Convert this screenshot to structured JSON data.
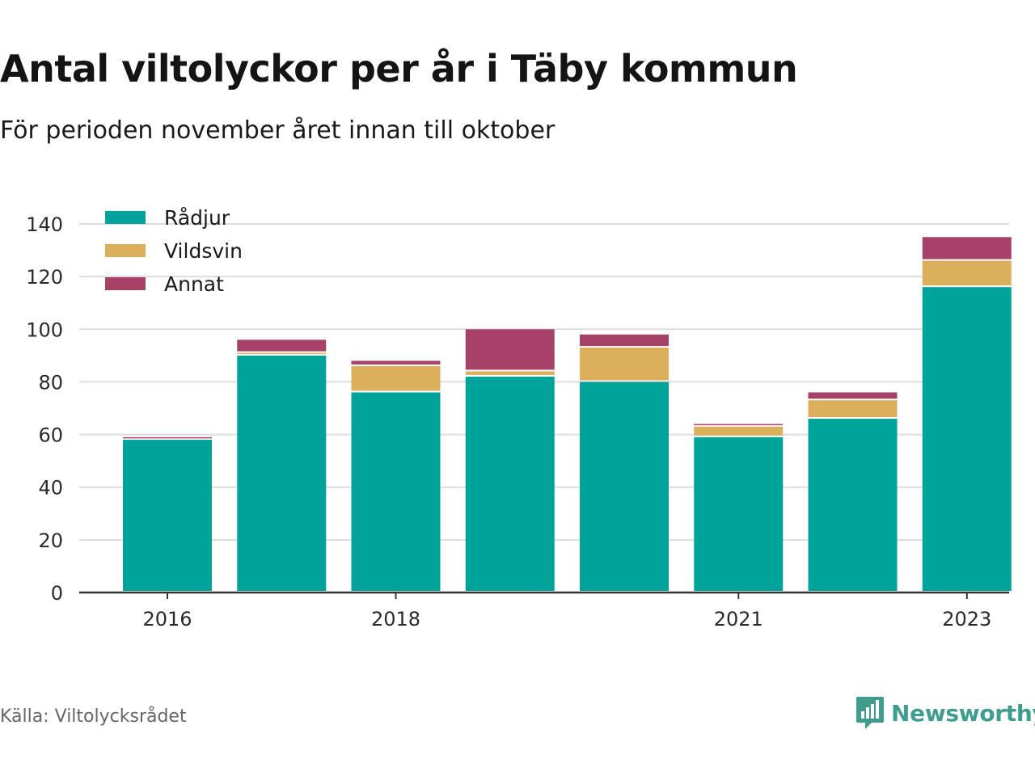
{
  "title": "Antal viltolyckor per år i Täby kommun",
  "subtitle": "För perioden november året innan till oktober",
  "source": "Källa: Viltolycksrådet",
  "brand": {
    "name": "Newsworthy",
    "icon": "newsworthy-logo-icon",
    "color": "#3f9c8f"
  },
  "chart_data": {
    "type": "bar",
    "stacked": true,
    "categories": [
      "2016",
      "2017",
      "2018",
      "2019",
      "2020",
      "2021",
      "2022",
      "2023"
    ],
    "x_tick_labels": [
      "2016",
      "",
      "2018",
      "",
      "",
      "2021",
      "",
      "2023"
    ],
    "series": [
      {
        "name": "Rådjur",
        "color": "#00a39a",
        "values": [
          58,
          90,
          76,
          82,
          80,
          59,
          66,
          116
        ]
      },
      {
        "name": "Vildsvin",
        "color": "#dcaf5c",
        "values": [
          0,
          1,
          10,
          2,
          13,
          4,
          7,
          10
        ]
      },
      {
        "name": "Annat",
        "color": "#a64167",
        "values": [
          1,
          5,
          2,
          16,
          5,
          1,
          3,
          9
        ]
      }
    ],
    "ylim": [
      0,
      145
    ],
    "yticks": [
      0,
      20,
      40,
      60,
      80,
      100,
      120,
      140
    ],
    "grid": true,
    "legend_position": "top-left",
    "xlabel": "",
    "ylabel": ""
  }
}
